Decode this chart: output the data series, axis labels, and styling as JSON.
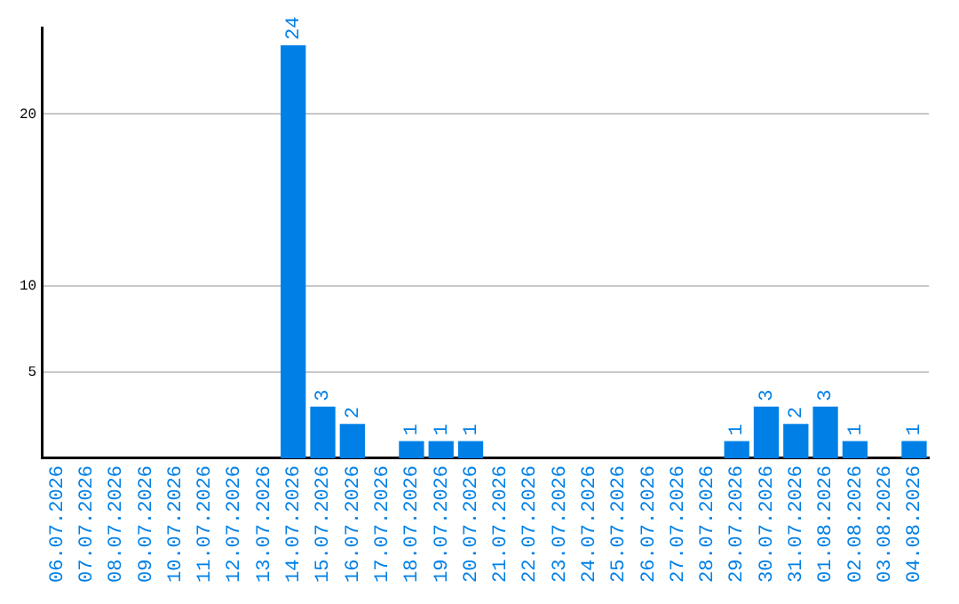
{
  "chart_data": {
    "type": "bar",
    "categories": [
      "06.07.2026",
      "07.07.2026",
      "08.07.2026",
      "09.07.2026",
      "10.07.2026",
      "11.07.2026",
      "12.07.2026",
      "13.07.2026",
      "14.07.2026",
      "15.07.2026",
      "16.07.2026",
      "17.07.2026",
      "18.07.2026",
      "19.07.2026",
      "20.07.2026",
      "21.07.2026",
      "22.07.2026",
      "23.07.2026",
      "24.07.2026",
      "25.07.2026",
      "26.07.2026",
      "27.07.2026",
      "28.07.2026",
      "29.07.2026",
      "30.07.2026",
      "31.07.2026",
      "01.08.2026",
      "02.08.2026",
      "03.08.2026",
      "04.08.2026"
    ],
    "values": [
      0,
      0,
      0,
      0,
      0,
      0,
      0,
      0,
      24,
      3,
      2,
      0,
      1,
      1,
      1,
      0,
      0,
      0,
      0,
      0,
      0,
      0,
      0,
      1,
      3,
      2,
      3,
      1,
      0,
      1
    ],
    "value_labels": [
      null,
      null,
      null,
      null,
      null,
      null,
      null,
      null,
      "24",
      "3",
      "2",
      null,
      "1",
      "1",
      "1",
      null,
      null,
      null,
      null,
      null,
      null,
      null,
      null,
      "1",
      "3",
      "2",
      "3",
      "1",
      null,
      "1"
    ],
    "color": "#0080e6",
    "ylim": [
      0,
      25
    ],
    "yticks": [
      5,
      10,
      20
    ],
    "grid": "y",
    "legend": false
  }
}
